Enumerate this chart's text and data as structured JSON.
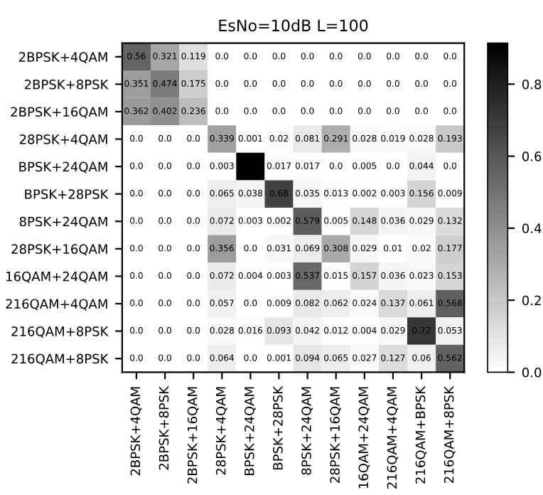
{
  "chart_data": {
    "type": "heatmap",
    "title": "EsNo=10dB L=100",
    "categories": [
      "2BPSK+4QAM",
      "2BPSK+8PSK",
      "2BPSK+16QAM",
      "28PSK+4QAM",
      "BPSK+24QAM",
      "BPSK+28PSK",
      "8PSK+24QAM",
      "28PSK+16QAM",
      "16QAM+24QAM",
      "216QAM+4QAM",
      "216QAM+BPSK",
      "216QAM+8PSK"
    ],
    "y_categories": [
      "2BPSK+4QAM",
      "2BPSK+8PSK",
      "2BPSK+16QAM",
      "28PSK+4QAM",
      "BPSK+24QAM",
      "BPSK+28PSK",
      "8PSK+24QAM",
      "28PSK+16QAM",
      "16QAM+24QAM",
      "216QAM+4QAM",
      "216QAM+8PSK",
      "216QAM+8PSK"
    ],
    "cells": [
      [
        0.56,
        0.321,
        0.119,
        0.0,
        0.0,
        0.0,
        0.0,
        0.0,
        0.0,
        0.0,
        0.0,
        0.0
      ],
      [
        0.351,
        0.474,
        0.175,
        0.0,
        0.0,
        0.0,
        0.0,
        0.0,
        0.0,
        0.0,
        0.0,
        0.0
      ],
      [
        0.362,
        0.402,
        0.236,
        0.0,
        0.0,
        0.0,
        0.0,
        0.0,
        0.0,
        0.0,
        0.0,
        0.0
      ],
      [
        0.0,
        0.0,
        0.0,
        0.339,
        0.001,
        0.02,
        0.081,
        0.291,
        0.028,
        0.019,
        0.028,
        0.193
      ],
      [
        0.0,
        0.0,
        0.0,
        0.003,
        0.914,
        0.017,
        0.017,
        0.0,
        0.005,
        0.0,
        0.044,
        0.0
      ],
      [
        0.0,
        0.0,
        0.0,
        0.065,
        0.038,
        0.68,
        0.035,
        0.013,
        0.002,
        0.003,
        0.156,
        0.009
      ],
      [
        0.0,
        0.0,
        0.0,
        0.072,
        0.003,
        0.002,
        0.579,
        0.005,
        0.148,
        0.036,
        0.029,
        0.132
      ],
      [
        0.0,
        0.0,
        0.0,
        0.356,
        0.0,
        0.031,
        0.069,
        0.308,
        0.029,
        0.01,
        0.02,
        0.177
      ],
      [
        0.0,
        0.0,
        0.0,
        0.072,
        0.004,
        0.003,
        0.537,
        0.015,
        0.157,
        0.036,
        0.023,
        0.153
      ],
      [
        0.0,
        0.0,
        0.0,
        0.057,
        0.0,
        0.009,
        0.082,
        0.062,
        0.024,
        0.137,
        0.061,
        0.568
      ],
      [
        0.0,
        0.0,
        0.0,
        0.028,
        0.016,
        0.093,
        0.042,
        0.012,
        0.004,
        0.029,
        0.72,
        0.053
      ],
      [
        0.0,
        0.0,
        0.0,
        0.064,
        0.0,
        0.001,
        0.094,
        0.065,
        0.027,
        0.127,
        0.06,
        0.562
      ]
    ],
    "cell_labels": [
      [
        "0.56",
        "0.321",
        "0.119",
        "0.0",
        "0.0",
        "0.0",
        "0.0",
        "0.0",
        "0.0",
        "0.0",
        "0.0",
        "0.0"
      ],
      [
        "0.351",
        "0.474",
        "0.175",
        "0.0",
        "0.0",
        "0.0",
        "0.0",
        "0.0",
        "0.0",
        "0.0",
        "0.0",
        "0.0"
      ],
      [
        "0.362",
        "0.402",
        "0.236",
        "0.0",
        "0.0",
        "0.0",
        "0.0",
        "0.0",
        "0.0",
        "0.0",
        "0.0",
        "0.0"
      ],
      [
        "0.0",
        "0.0",
        "0.0",
        "0.339",
        "0.001",
        "0.02",
        "0.081",
        "0.291",
        "0.028",
        "0.019",
        "0.028",
        "0.193"
      ],
      [
        "0.0",
        "0.0",
        "0.0",
        "0.003",
        null,
        "0.017",
        "0.017",
        "0.0",
        "0.005",
        "0.0",
        "0.044",
        "0.0"
      ],
      [
        "0.0",
        "0.0",
        "0.0",
        "0.065",
        "0.038",
        "0.68",
        "0.035",
        "0.013",
        "0.002",
        "0.003",
        "0.156",
        "0.009"
      ],
      [
        "0.0",
        "0.0",
        "0.0",
        "0.072",
        "0.003",
        "0.002",
        "0.579",
        "0.005",
        "0.148",
        "0.036",
        "0.029",
        "0.132"
      ],
      [
        "0.0",
        "0.0",
        "0.0",
        "0.356",
        "0.0",
        "0.031",
        "0.069",
        "0.308",
        "0.029",
        "0.01",
        "0.02",
        "0.177"
      ],
      [
        "0.0",
        "0.0",
        "0.0",
        "0.072",
        "0.004",
        "0.003",
        "0.537",
        "0.015",
        "0.157",
        "0.036",
        "0.023",
        "0.153"
      ],
      [
        "0.0",
        "0.0",
        "0.0",
        "0.057",
        "0.0",
        "0.009",
        "0.082",
        "0.062",
        "0.024",
        "0.137",
        "0.061",
        "0.568"
      ],
      [
        "0.0",
        "0.0",
        "0.0",
        "0.028",
        "0.016",
        "0.093",
        "0.042",
        "0.012",
        "0.004",
        "0.029",
        "0.72",
        "0.053"
      ],
      [
        "0.0",
        "0.0",
        "0.0",
        "0.064",
        "0.0",
        "0.001",
        "0.094",
        "0.065",
        "0.027",
        "0.127",
        "0.06",
        "0.562"
      ]
    ],
    "clim": [
      0,
      0.914
    ],
    "cticks": [
      {
        "value": 0,
        "label": "0.0"
      },
      {
        "value": 0.2,
        "label": "0.2"
      },
      {
        "value": 0.4,
        "label": "0.4"
      },
      {
        "value": 0.6,
        "label": "0.6"
      },
      {
        "value": 0.8,
        "label": "0.8"
      }
    ]
  }
}
